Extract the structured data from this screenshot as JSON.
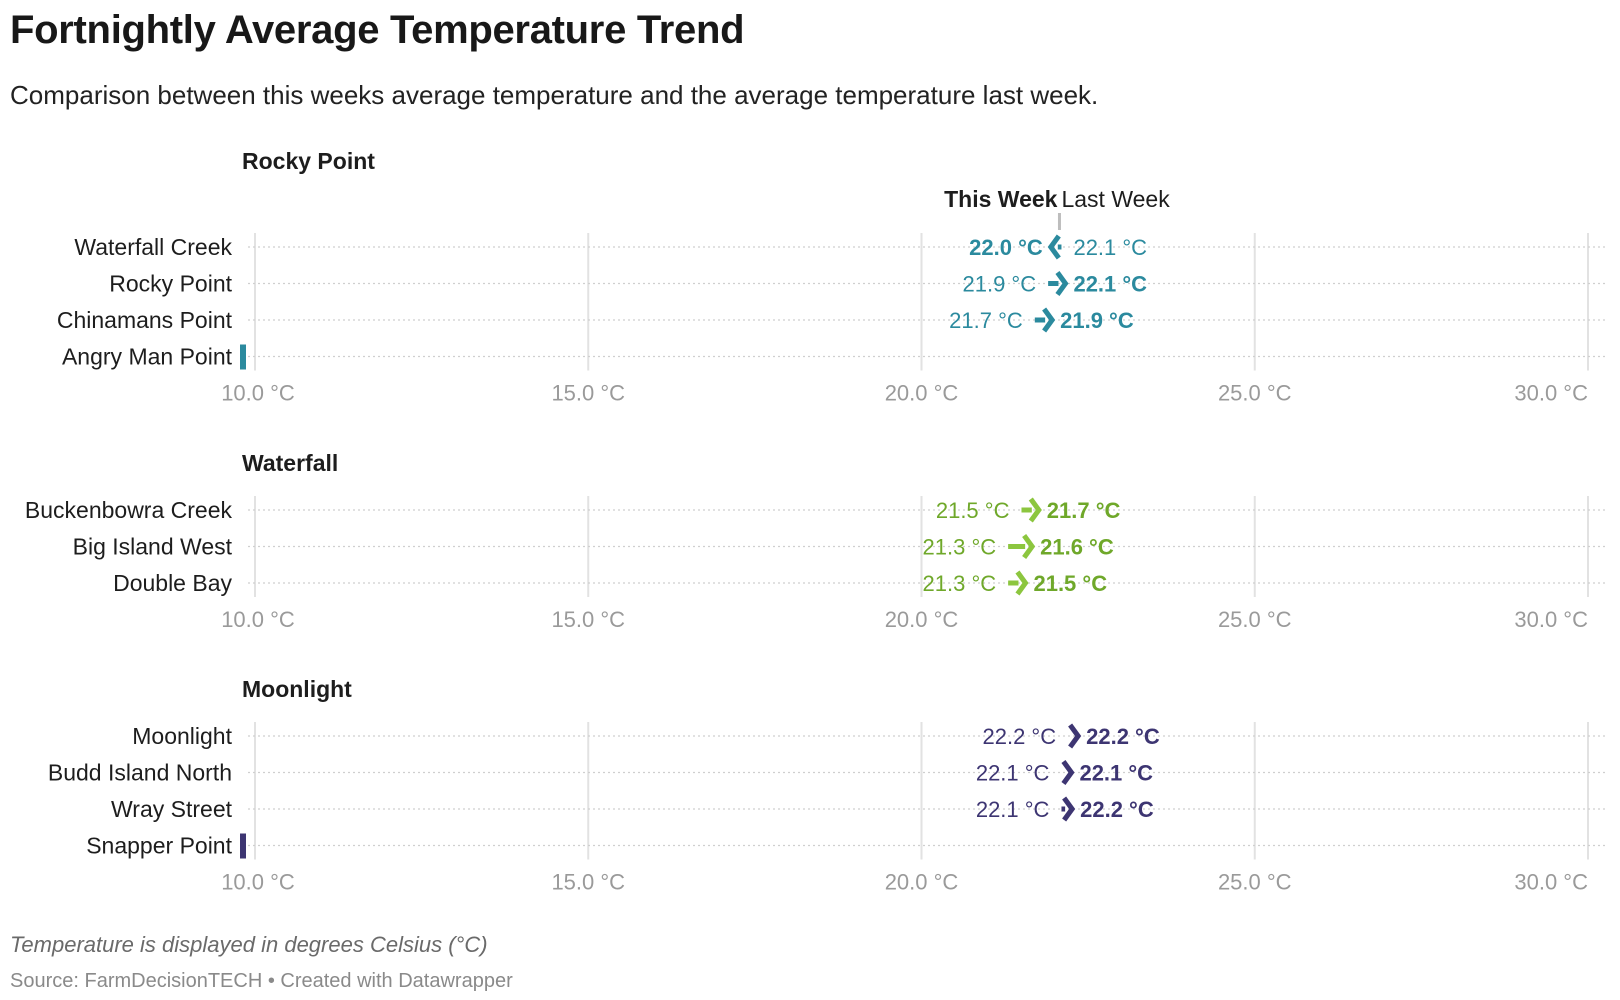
{
  "header": {
    "title": "Fortnightly Average Temperature Trend",
    "subtitle": "Comparison between this weeks average temperature and the average temperature last week."
  },
  "footer": {
    "note": "Temperature is displayed in degrees Celsius (°C)",
    "source": "Source: FarmDecisionTECH • Created with Datawrapper"
  },
  "chart_data": {
    "type": "arrow",
    "xlim": [
      10,
      30
    ],
    "x_ticks": [
      10,
      15,
      20,
      25,
      30
    ],
    "tick_suffix": " °C",
    "grid": true,
    "legend": {
      "this_week": "This Week",
      "last_week": "Last Week"
    },
    "groups": [
      {
        "name": "Rocky Point",
        "color": "#2b8a9e",
        "rows": [
          {
            "label": "Waterfall Creek",
            "this_week": 22.0,
            "last_week": 22.1
          },
          {
            "label": "Rocky Point",
            "this_week": 22.1,
            "last_week": 21.9
          },
          {
            "label": "Chinamans Point",
            "this_week": 21.9,
            "last_week": 21.7
          },
          {
            "label": "Angry Man Point",
            "this_week": null,
            "last_week": null
          }
        ]
      },
      {
        "name": "Waterfall",
        "color": "#8cc63f",
        "text_color": "#6fa82a",
        "rows": [
          {
            "label": "Buckenbowra Creek",
            "this_week": 21.7,
            "last_week": 21.5
          },
          {
            "label": "Big Island West",
            "this_week": 21.6,
            "last_week": 21.3
          },
          {
            "label": "Double Bay",
            "this_week": 21.5,
            "last_week": 21.3
          }
        ]
      },
      {
        "name": "Moonlight",
        "color": "#3d3572",
        "rows": [
          {
            "label": "Moonlight",
            "this_week": 22.2,
            "last_week": 22.2
          },
          {
            "label": "Budd Island North",
            "this_week": 22.1,
            "last_week": 22.1
          },
          {
            "label": "Wray Street",
            "this_week": 22.2,
            "last_week": 22.1
          },
          {
            "label": "Snapper Point",
            "this_week": null,
            "last_week": null
          }
        ]
      }
    ]
  }
}
